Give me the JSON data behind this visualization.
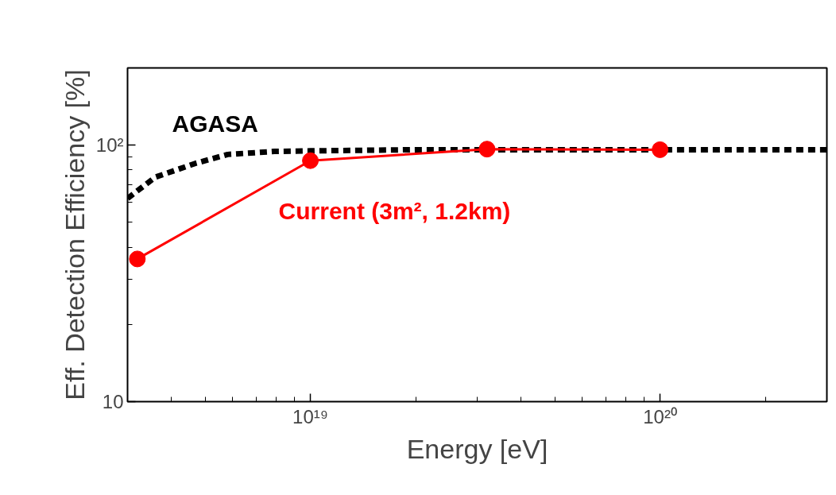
{
  "chart_data": {
    "type": "line",
    "xlabel": "Energy [eV]",
    "ylabel": "Eff. Detection Efficiency [%]",
    "log": "xy",
    "grid": false,
    "xlim": [
      3e+18,
      3e+20
    ],
    "ylim": [
      10,
      200
    ],
    "xticks": [
      {
        "value": 4e+18,
        "label": null
      },
      {
        "value": 5e+18,
        "label": null
      },
      {
        "value": 6e+18,
        "label": null
      },
      {
        "value": 7e+18,
        "label": null
      },
      {
        "value": 8e+18,
        "label": null
      },
      {
        "value": 9e+18,
        "label": null
      },
      {
        "value": 1e+19,
        "label": "10¹⁹"
      },
      {
        "value": 2e+19,
        "label": null
      },
      {
        "value": 3e+19,
        "label": null
      },
      {
        "value": 4e+19,
        "label": null
      },
      {
        "value": 5e+19,
        "label": null
      },
      {
        "value": 6e+19,
        "label": null
      },
      {
        "value": 7e+19,
        "label": null
      },
      {
        "value": 8e+19,
        "label": null
      },
      {
        "value": 9e+19,
        "label": null
      },
      {
        "value": 1e+20,
        "label": "10²⁰"
      },
      {
        "value": 2e+20,
        "label": null
      }
    ],
    "yticks": [
      10,
      {
        "value": 20,
        "label": null
      },
      {
        "value": 30,
        "label": null
      },
      {
        "value": 40,
        "label": null
      },
      {
        "value": 50,
        "label": null
      },
      {
        "value": 60,
        "label": null
      },
      {
        "value": 70,
        "label": null
      },
      {
        "value": 80,
        "label": null
      },
      {
        "value": 90,
        "label": null
      },
      {
        "value": 100,
        "label": "10²"
      }
    ],
    "series": [
      {
        "name": "AGASA",
        "color": "#000000",
        "line_style": "dotted",
        "marker": "none",
        "x": [
          3e+18,
          3.6e+18,
          4.7e+18,
          5.8e+18,
          7.9e+18,
          1e+19,
          2e+19,
          1e+20,
          3e+20
        ],
        "values": [
          62,
          75,
          85,
          92,
          94.5,
          95,
          96,
          96,
          96
        ]
      },
      {
        "name": "Current (3m², 1.2km)",
        "color": "#ff0000",
        "line_style": "solid",
        "marker": "circle",
        "x": [
          3.2e+18,
          1e+19,
          3.2e+19,
          1e+20
        ],
        "values": [
          36,
          87,
          96.5,
          96
        ]
      }
    ]
  }
}
